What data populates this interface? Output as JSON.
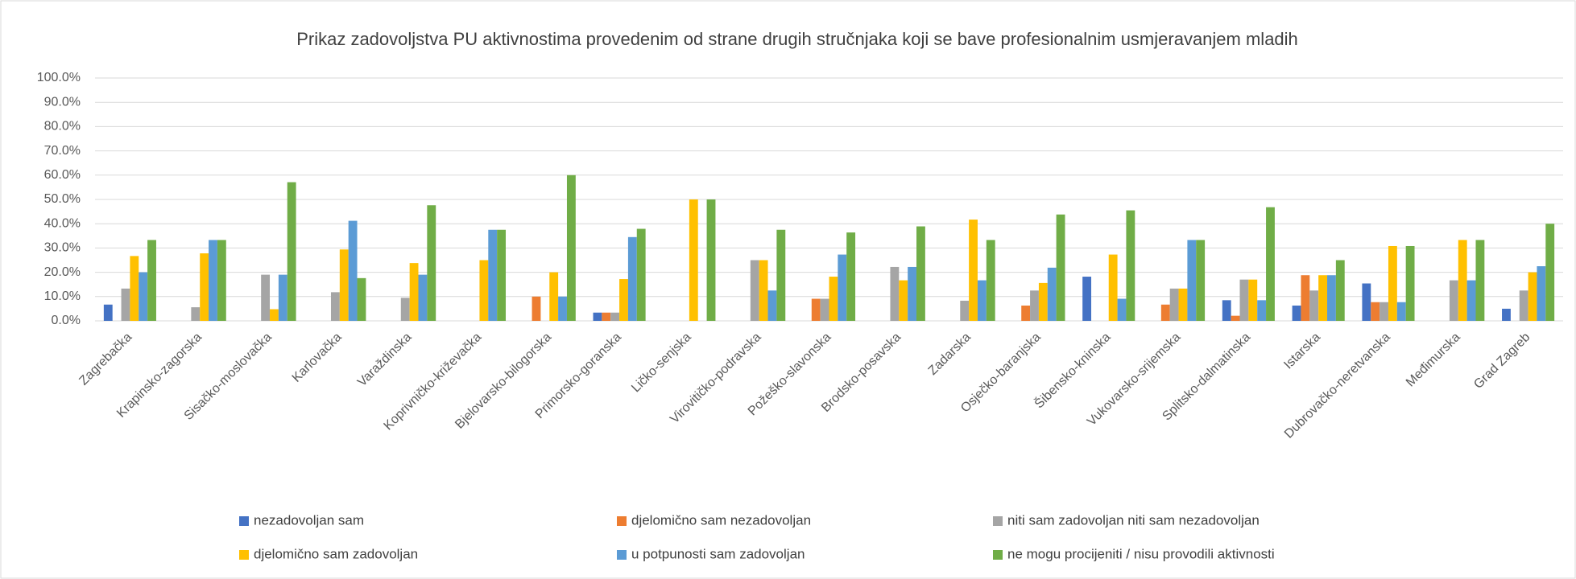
{
  "chart_data": {
    "type": "bar",
    "title": "Prikaz zadovoljstva PU aktivnostima provedenim od strane drugih stručnjaka koji se bave profesionalnim usmjeravanjem mladih",
    "categories": [
      "Zagrebačka",
      "Krapinsko-zagorska",
      "Sisačko-moslovačka",
      "Karlovačka",
      "Varaždinska",
      "Koprivničko-križevačka",
      "Bjelovarsko-bilogorska",
      "Primorsko-goranska",
      "Ličko-senjska",
      "Virovitičko-podravska",
      "Požeško-slavonska",
      "Brodsko-posavska",
      "Zadarska",
      "Osječko-baranjska",
      "Šibensko-kninska",
      "Vukovarsko-srijemska",
      "Splitsko-dalmatinska",
      "Istarska",
      "Dubrovačko-neretvanska",
      "Međimurska",
      "Grad Zagreb"
    ],
    "series": [
      {
        "name": "nezadovoljan sam",
        "color": "#4472c4",
        "values": [
          6.7,
          0,
          0,
          0,
          0,
          0,
          0,
          3.4,
          0,
          0,
          0,
          0,
          0,
          0,
          18.2,
          0,
          8.5,
          6.3,
          15.4,
          0,
          5
        ]
      },
      {
        "name": "djelomično sam nezadovoljan",
        "color": "#ed7d31",
        "values": [
          0,
          0,
          0,
          0,
          0,
          0,
          10,
          3.4,
          0,
          0,
          9.1,
          0,
          0,
          6.3,
          0,
          6.7,
          2.1,
          18.8,
          7.7,
          0,
          0
        ]
      },
      {
        "name": "niti sam zadovoljan niti sam nezadovoljan",
        "color": "#a5a5a5",
        "values": [
          13.3,
          5.6,
          19,
          11.8,
          9.5,
          0,
          0,
          3.4,
          0,
          25,
          9.1,
          22.2,
          8.3,
          12.5,
          0,
          13.3,
          17,
          12.5,
          7.7,
          16.7,
          12.5
        ]
      },
      {
        "name": "djelomično sam zadovoljan",
        "color": "#ffc000",
        "values": [
          26.7,
          27.8,
          4.8,
          29.4,
          23.8,
          25,
          20,
          17.2,
          50,
          25,
          18.2,
          16.7,
          41.7,
          15.6,
          27.3,
          13.3,
          17,
          18.8,
          30.8,
          33.3,
          20
        ]
      },
      {
        "name": "u potpunosti sam zadovoljan",
        "color": "#5b9bd5",
        "values": [
          20,
          33.3,
          19,
          41.2,
          19,
          37.5,
          10,
          34.5,
          0,
          12.5,
          27.3,
          22.2,
          16.7,
          21.9,
          9.1,
          33.3,
          8.5,
          18.8,
          7.7,
          16.7,
          22.5
        ]
      },
      {
        "name": "ne mogu procijeniti / nisu provodili aktivnosti",
        "color": "#70ad47",
        "values": [
          33.3,
          33.3,
          57.1,
          17.6,
          47.6,
          37.5,
          60,
          37.9,
          50,
          37.5,
          36.4,
          38.9,
          33.3,
          43.8,
          45.5,
          33.3,
          46.8,
          25,
          30.8,
          33.3,
          40
        ]
      }
    ],
    "ylim": [
      0,
      100
    ],
    "yticks": [
      {
        "value": 0,
        "label": "0.0%"
      },
      {
        "value": 10,
        "label": "10.0%"
      },
      {
        "value": 20,
        "label": "20.0%"
      },
      {
        "value": 30,
        "label": "30.0%"
      },
      {
        "value": 40,
        "label": "40.0%"
      },
      {
        "value": 50,
        "label": "50.0%"
      },
      {
        "value": 60,
        "label": "60.0%"
      },
      {
        "value": 70,
        "label": "70.0%"
      },
      {
        "value": 80,
        "label": "80.0%"
      },
      {
        "value": 90,
        "label": "90.0%"
      },
      {
        "value": 100,
        "label": "100.0%"
      }
    ],
    "grid": true
  }
}
